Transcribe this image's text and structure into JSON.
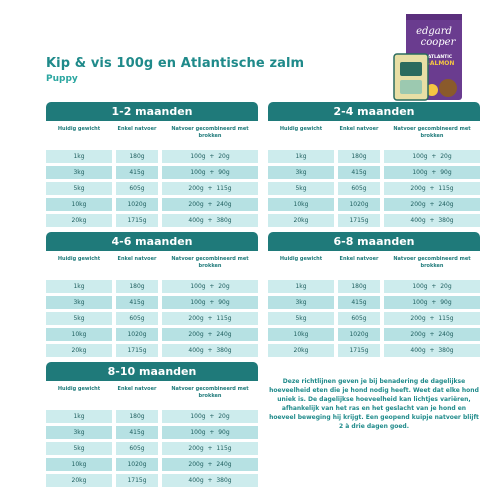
{
  "title": "Kip & vis 100g en Atlantische zalm",
  "subtitle": "Puppy",
  "product": {
    "brand_line1": "edgard",
    "brand_line2": "cooper",
    "flavour_line1": "ATLANTIC",
    "flavour_line2": "SALMON",
    "colors": {
      "bag": "#6a3c8f",
      "tray": "#e8dfa5",
      "accent": "#f4c542"
    }
  },
  "columns": {
    "weight": "Huidig gewicht",
    "wet": "Enkel natvoer",
    "combo": "Natvoer gecombineerd met brokken"
  },
  "panels": [
    {
      "title": "1-2 maanden",
      "rows": [
        {
          "weight": "1kg",
          "wet": "180g",
          "combo_wet": "100g",
          "combo_dry": "20g"
        },
        {
          "weight": "3kg",
          "wet": "415g",
          "combo_wet": "100g",
          "combo_dry": "90g"
        },
        {
          "weight": "5kg",
          "wet": "605g",
          "combo_wet": "200g",
          "combo_dry": "115g"
        },
        {
          "weight": "10kg",
          "wet": "1020g",
          "combo_wet": "200g",
          "combo_dry": "240g"
        },
        {
          "weight": "20kg",
          "wet": "1715g",
          "combo_wet": "400g",
          "combo_dry": "380g"
        }
      ]
    },
    {
      "title": "2-4 maanden",
      "rows": [
        {
          "weight": "1kg",
          "wet": "180g",
          "combo_wet": "100g",
          "combo_dry": "20g"
        },
        {
          "weight": "3kg",
          "wet": "415g",
          "combo_wet": "100g",
          "combo_dry": "90g"
        },
        {
          "weight": "5kg",
          "wet": "605g",
          "combo_wet": "200g",
          "combo_dry": "115g"
        },
        {
          "weight": "10kg",
          "wet": "1020g",
          "combo_wet": "200g",
          "combo_dry": "240g"
        },
        {
          "weight": "20kg",
          "wet": "1715g",
          "combo_wet": "400g",
          "combo_dry": "380g"
        }
      ]
    },
    {
      "title": "4-6 maanden",
      "rows": [
        {
          "weight": "1kg",
          "wet": "180g",
          "combo_wet": "100g",
          "combo_dry": "20g"
        },
        {
          "weight": "3kg",
          "wet": "415g",
          "combo_wet": "100g",
          "combo_dry": "90g"
        },
        {
          "weight": "5kg",
          "wet": "605g",
          "combo_wet": "200g",
          "combo_dry": "115g"
        },
        {
          "weight": "10kg",
          "wet": "1020g",
          "combo_wet": "200g",
          "combo_dry": "240g"
        },
        {
          "weight": "20kg",
          "wet": "1715g",
          "combo_wet": "400g",
          "combo_dry": "380g"
        }
      ]
    },
    {
      "title": "6-8 maanden",
      "rows": [
        {
          "weight": "1kg",
          "wet": "180g",
          "combo_wet": "100g",
          "combo_dry": "20g"
        },
        {
          "weight": "3kg",
          "wet": "415g",
          "combo_wet": "100g",
          "combo_dry": "90g"
        },
        {
          "weight": "5kg",
          "wet": "605g",
          "combo_wet": "200g",
          "combo_dry": "115g"
        },
        {
          "weight": "10kg",
          "wet": "1020g",
          "combo_wet": "200g",
          "combo_dry": "240g"
        },
        {
          "weight": "20kg",
          "wet": "1715g",
          "combo_wet": "400g",
          "combo_dry": "380g"
        }
      ]
    },
    {
      "title": "8-10 maanden",
      "rows": [
        {
          "weight": "1kg",
          "wet": "180g",
          "combo_wet": "100g",
          "combo_dry": "20g"
        },
        {
          "weight": "3kg",
          "wet": "415g",
          "combo_wet": "100g",
          "combo_dry": "90g"
        },
        {
          "weight": "5kg",
          "wet": "605g",
          "combo_wet": "200g",
          "combo_dry": "115g"
        },
        {
          "weight": "10kg",
          "wet": "1020g",
          "combo_wet": "200g",
          "combo_dry": "240g"
        },
        {
          "weight": "20kg",
          "wet": "1715g",
          "combo_wet": "400g",
          "combo_dry": "380g"
        }
      ]
    }
  ],
  "note": "Deze richtlijnen geven je bij benadering de dagelijkse hoeveelheid eten die je hond nodig heeft. Weet dat elke hond uniek is. De dagelijkse hoeveelheid kan lichtjes variëren, afhankelijk van het ras en het geslacht van je hond en hoeveel beweging hij krijgt. Een geopend kuipje natvoer blijft 2 à drie dagen goed.",
  "colors": {
    "header": "#1f7a7a",
    "row_light": "#cdeced",
    "row_dark": "#b6e1e3",
    "text": "#1f8a8a"
  }
}
